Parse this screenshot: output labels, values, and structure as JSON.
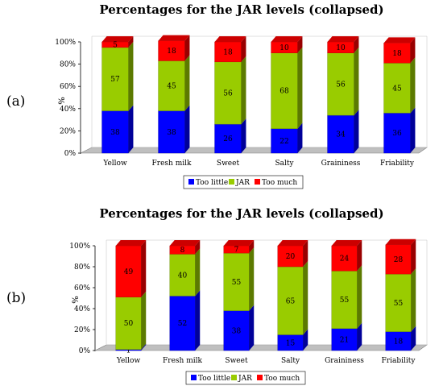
{
  "chart_data": [
    {
      "type": "bar",
      "stacked": true,
      "panel_label": "(a)",
      "title": "Percentages for the JAR levels (collapsed)",
      "ylabel": "%",
      "ylim": [
        0,
        100
      ],
      "ytick_labels": [
        "0%",
        "20%",
        "40%",
        "60%",
        "80%",
        "100%"
      ],
      "categories": [
        "Yellow",
        "Fresh milk",
        "Sweet",
        "Salty",
        "Graininess",
        "Friability"
      ],
      "series": [
        {
          "name": "Too little",
          "color": "#0000FF",
          "values": [
            38,
            38,
            26,
            22,
            34,
            36
          ]
        },
        {
          "name": "JAR",
          "color": "#99CC00",
          "values": [
            57,
            45,
            56,
            68,
            56,
            45
          ]
        },
        {
          "name": "Too much",
          "color": "#FF0000",
          "values": [
            5,
            18,
            18,
            10,
            10,
            18
          ]
        }
      ],
      "legend_position": "bottom"
    },
    {
      "type": "bar",
      "stacked": true,
      "panel_label": "(b)",
      "title": "Percentages for the JAR levels (collapsed)",
      "ylabel": "%",
      "ylim": [
        0,
        100
      ],
      "ytick_labels": [
        "0%",
        "20%",
        "40%",
        "60%",
        "80%",
        "100%"
      ],
      "categories": [
        "Yellow",
        "Fresh milk",
        "Sweet",
        "Salty",
        "Graininess",
        "Friability"
      ],
      "series": [
        {
          "name": "Too little",
          "color": "#0000FF",
          "values": [
            1,
            52,
            38,
            15,
            21,
            18
          ]
        },
        {
          "name": "JAR",
          "color": "#99CC00",
          "values": [
            50,
            40,
            55,
            65,
            55,
            55
          ]
        },
        {
          "name": "Too much",
          "color": "#FF0000",
          "values": [
            49,
            8,
            7,
            20,
            24,
            28
          ]
        }
      ],
      "legend_position": "bottom"
    }
  ]
}
